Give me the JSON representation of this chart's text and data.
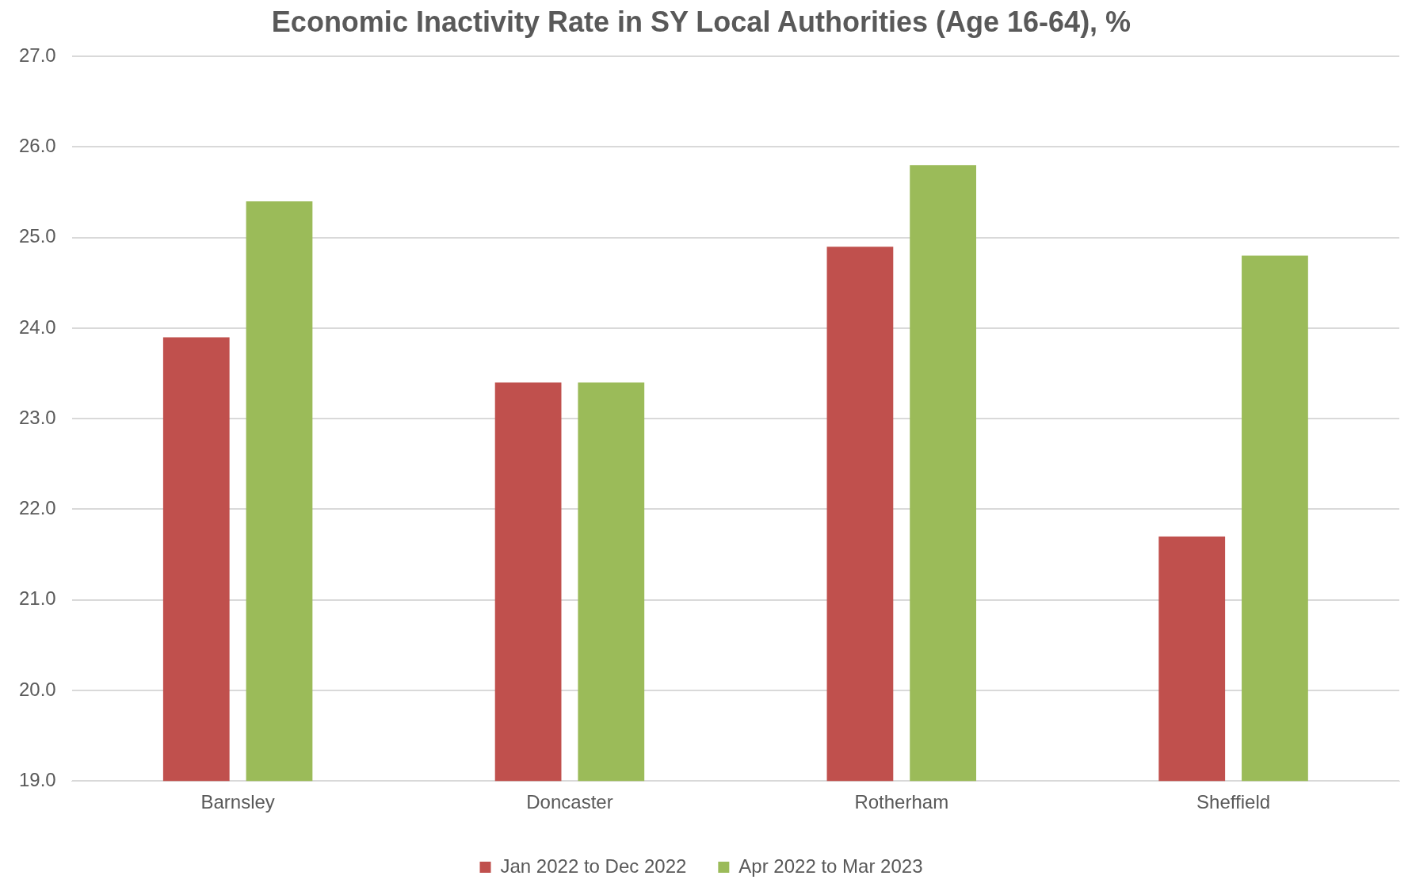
{
  "chart_data": {
    "type": "bar",
    "title": "Economic Inactivity Rate in SY Local Authorities (Age 16-64), %",
    "categories": [
      "Barnsley",
      "Doncaster",
      "Rotherham",
      "Sheffield"
    ],
    "series": [
      {
        "name": "Jan 2022 to Dec 2022",
        "color": "#c0504d",
        "values": [
          23.9,
          23.4,
          24.9,
          21.7
        ]
      },
      {
        "name": "Apr 2022 to Mar 2023",
        "color": "#9bbb59",
        "values": [
          25.4,
          23.4,
          25.8,
          24.8
        ]
      }
    ],
    "ylim": [
      19,
      27
    ],
    "yticks": [
      {
        "value": 19,
        "label": "19.0"
      },
      {
        "value": 20,
        "label": "20.0"
      },
      {
        "value": 21,
        "label": "21.0"
      },
      {
        "value": 22,
        "label": "22.0"
      },
      {
        "value": 23,
        "label": "23.0"
      },
      {
        "value": 24,
        "label": "24.0"
      },
      {
        "value": 25,
        "label": "25.0"
      },
      {
        "value": 26,
        "label": "26.0"
      },
      {
        "value": 27,
        "label": "27.0"
      }
    ],
    "grid": "y",
    "legend": "bottom"
  }
}
